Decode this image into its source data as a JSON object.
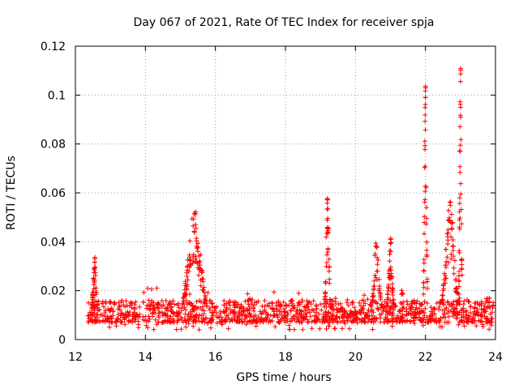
{
  "chart_data": {
    "type": "scatter",
    "title": "Day 067 of 2021, Rate Of TEC Index for receiver spja",
    "xlabel": "GPS time / hours",
    "ylabel": "ROTI / TECUs",
    "xlim": [
      12,
      24
    ],
    "ylim": [
      0,
      0.12
    ],
    "x_ticks": [
      "12",
      "14",
      "16",
      "18",
      "20",
      "22",
      "24"
    ],
    "y_ticks": [
      "0",
      "0.02",
      "0.04",
      "0.06",
      "0.08",
      "0.1",
      "0.12"
    ],
    "grid": true,
    "marker": "+",
    "color": "#ff0000",
    "background_noise": {
      "x_range": [
        12.35,
        23.95
      ],
      "y_min": 0.004,
      "y_typical": [
        0.007,
        0.016
      ],
      "note": "dense band of ROTI values between ~0.005 and ~0.02 across the whole time span"
    },
    "features": [
      {
        "name": "burst-12.5h",
        "x_center": 12.55,
        "x_width": 0.08,
        "y_peak": 0.034
      },
      {
        "name": "enhancement-15.4h",
        "x_center": 15.4,
        "x_width": 0.35,
        "y_peak": 0.054
      },
      {
        "name": "spike-19.2h",
        "x_center": 19.2,
        "x_width": 0.08,
        "y_peak": 0.059
      },
      {
        "name": "cluster-20.6h",
        "x_center": 20.6,
        "x_width": 0.15,
        "y_peak": 0.04
      },
      {
        "name": "cluster-21.0h",
        "x_center": 21.0,
        "x_width": 0.1,
        "y_peak": 0.042
      },
      {
        "name": "spike-22.0h",
        "x_center": 22.0,
        "x_width": 0.06,
        "y_peak": 0.104
      },
      {
        "name": "enhancement-22.7h",
        "x_center": 22.7,
        "x_width": 0.25,
        "y_peak": 0.057
      },
      {
        "name": "spike-23.0h",
        "x_center": 23.0,
        "x_width": 0.05,
        "y_peak": 0.111
      }
    ]
  }
}
